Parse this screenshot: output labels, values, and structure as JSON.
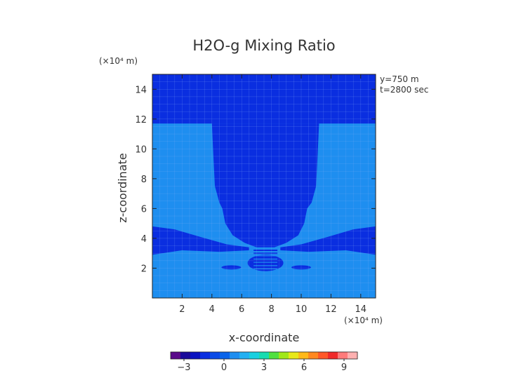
{
  "chart_data": {
    "type": "heatmap",
    "title": "H2O-g Mixing Ratio",
    "xlabel": "x-coordinate",
    "ylabel": "z-coordinate",
    "x_unit": "(×10⁴ m)",
    "y_unit": "(×10⁴ m)",
    "annotations": [
      "y=750 m",
      "t=2800 sec"
    ],
    "xlim": [
      0,
      15
    ],
    "ylim": [
      0,
      15
    ],
    "x_ticks": [
      2,
      4,
      6,
      8,
      10,
      12,
      14
    ],
    "y_ticks": [
      2,
      4,
      6,
      8,
      10,
      12,
      14
    ],
    "colorbar": {
      "range": [
        -4,
        10
      ],
      "tick_values": [
        -3,
        0,
        3,
        6,
        9
      ],
      "tick_labels": [
        "−3",
        "0",
        "3",
        "6",
        "9"
      ]
    },
    "regions": {
      "upper_dark_band_bottom_z": 11.7,
      "plume_top_half_width_x": [
        4.0,
        11.2
      ],
      "plume_narrowest_x": [
        4.7,
        10.4
      ],
      "plume_base_z": 3.4,
      "lower_dark_layer_z": [
        2.7,
        4.8
      ],
      "core_layers_x": [
        6.4,
        8.8
      ],
      "core_layers_z": [
        1.8,
        2.9
      ]
    },
    "colors": {
      "dark_blue": "#0a2ee0",
      "light_blue": "#1e8ef0",
      "grid_line": "#8ab0f5"
    }
  }
}
